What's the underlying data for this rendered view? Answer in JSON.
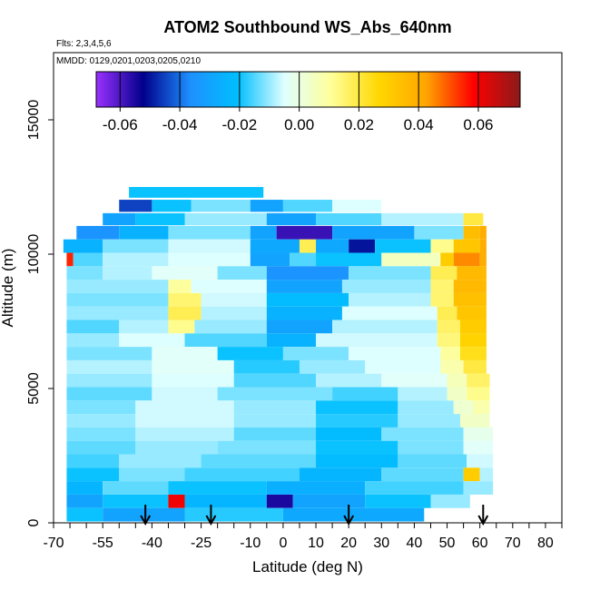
{
  "chart_data": {
    "type": "heatmap",
    "title": "ATOM2 Southbound WS_Abs_640nm",
    "flights_label": "Flts: 2,3,4,5,6",
    "dates_label": "MMDD: 0129,0201,0203,0205,0210",
    "xlabel": "Latitude (deg N)",
    "ylabel": "Altitude (m)",
    "xlim": [
      -70,
      85
    ],
    "ylim": [
      0,
      17500
    ],
    "x_ticks": [
      -70,
      -55,
      -40,
      -25,
      -10,
      0,
      10,
      20,
      30,
      40,
      50,
      60,
      70,
      80
    ],
    "x_tick_labels": [
      "-70",
      "-55",
      "-40",
      "-25",
      "-10",
      "0",
      "10",
      "20",
      "30",
      "40",
      "50",
      "60",
      "70",
      "80"
    ],
    "x_minor_ticks": [
      -65,
      -60,
      -50,
      -45,
      -35,
      -30,
      -20,
      -15,
      -5,
      5,
      15,
      25,
      35,
      45,
      55,
      65,
      75,
      85
    ],
    "y_ticks": [
      0,
      5000,
      10000,
      15000
    ],
    "y_tick_labels": [
      "0",
      "5000",
      "10000",
      "15000"
    ],
    "colorbar": {
      "range": [
        -0.068,
        0.074
      ],
      "ticks": [
        -0.06,
        -0.04,
        -0.02,
        0.0,
        0.02,
        0.04,
        0.06
      ],
      "tick_labels": [
        "-0.06",
        "-0.04",
        "-0.02",
        "0.00",
        "0.02",
        "0.04",
        "0.06"
      ],
      "colors": [
        "#9b30ff",
        "#00008b",
        "#1e90ff",
        "#00bfff",
        "#e0ffff",
        "#ffff99",
        "#ffd700",
        "#ffa500",
        "#ff0000",
        "#8b1a1a"
      ]
    },
    "arrows_latitude": [
      -42,
      -22,
      20,
      61
    ],
    "rows": [
      {
        "alt": 12300,
        "h": 400,
        "segs": [
          [
            -47,
            -6,
            -0.02
          ]
        ]
      },
      {
        "alt": 11800,
        "h": 450,
        "segs": [
          [
            -50,
            -40,
            -0.045
          ],
          [
            -40,
            -28,
            -0.02
          ],
          [
            -28,
            -10,
            -0.012
          ],
          [
            -10,
            0,
            -0.03
          ],
          [
            0,
            15,
            -0.015
          ],
          [
            15,
            30,
            -0.005
          ]
        ]
      },
      {
        "alt": 11300,
        "h": 450,
        "segs": [
          [
            -55,
            -45,
            -0.03
          ],
          [
            -45,
            -30,
            -0.02
          ],
          [
            -30,
            -5,
            -0.01
          ],
          [
            -5,
            10,
            -0.03
          ],
          [
            10,
            30,
            -0.015
          ],
          [
            30,
            55,
            -0.008
          ],
          [
            55,
            61,
            0.02
          ]
        ]
      },
      {
        "alt": 10800,
        "h": 500,
        "segs": [
          [
            -63,
            -50,
            -0.035
          ],
          [
            -50,
            -35,
            -0.025
          ],
          [
            -35,
            -10,
            -0.012
          ],
          [
            -10,
            -2,
            -0.03
          ],
          [
            -2,
            15,
            -0.058
          ],
          [
            15,
            40,
            -0.03
          ],
          [
            40,
            55,
            -0.012
          ],
          [
            55,
            60,
            0.035
          ],
          [
            60,
            62,
            0.04
          ]
        ]
      },
      {
        "alt": 10300,
        "h": 500,
        "segs": [
          [
            -67,
            -55,
            -0.025
          ],
          [
            -55,
            -35,
            -0.012
          ],
          [
            -35,
            -10,
            -0.006
          ],
          [
            -10,
            5,
            -0.028
          ],
          [
            5,
            10,
            0.018
          ],
          [
            10,
            20,
            -0.028
          ],
          [
            20,
            28,
            -0.05
          ],
          [
            28,
            45,
            -0.02
          ],
          [
            45,
            52,
            0.012
          ],
          [
            52,
            60,
            0.032
          ],
          [
            60,
            62,
            0.04
          ]
        ]
      },
      {
        "alt": 9800,
        "h": 500,
        "segs": [
          [
            -66,
            -64,
            0.055
          ],
          [
            -64,
            -55,
            -0.015
          ],
          [
            -55,
            -35,
            -0.008
          ],
          [
            -35,
            -10,
            -0.005
          ],
          [
            -10,
            2,
            -0.03
          ],
          [
            2,
            10,
            -0.015
          ],
          [
            10,
            30,
            -0.02
          ],
          [
            30,
            48,
            0.005
          ],
          [
            48,
            52,
            0.03
          ],
          [
            52,
            60,
            0.045
          ],
          [
            60,
            62,
            0.04
          ]
        ]
      },
      {
        "alt": 9300,
        "h": 500,
        "segs": [
          [
            -66,
            -55,
            -0.012
          ],
          [
            -55,
            -40,
            -0.008
          ],
          [
            -40,
            -20,
            -0.004
          ],
          [
            -20,
            -5,
            -0.012
          ],
          [
            -5,
            20,
            -0.035
          ],
          [
            20,
            45,
            -0.012
          ],
          [
            45,
            53,
            0.018
          ],
          [
            53,
            62,
            0.036
          ]
        ]
      },
      {
        "alt": 8800,
        "h": 500,
        "segs": [
          [
            -66,
            -35,
            -0.01
          ],
          [
            -35,
            -28,
            0.01
          ],
          [
            -28,
            -5,
            -0.005
          ],
          [
            -5,
            18,
            -0.03
          ],
          [
            18,
            45,
            -0.01
          ],
          [
            45,
            52,
            0.015
          ],
          [
            52,
            62,
            0.036
          ]
        ]
      },
      {
        "alt": 8300,
        "h": 500,
        "segs": [
          [
            -66,
            -35,
            -0.012
          ],
          [
            -35,
            -25,
            0.015
          ],
          [
            -25,
            -5,
            -0.006
          ],
          [
            -5,
            20,
            -0.022
          ],
          [
            20,
            45,
            -0.008
          ],
          [
            45,
            52,
            0.015
          ],
          [
            52,
            62,
            0.034
          ]
        ]
      },
      {
        "alt": 7800,
        "h": 500,
        "segs": [
          [
            -66,
            -35,
            -0.01
          ],
          [
            -35,
            -25,
            0.018
          ],
          [
            -25,
            -5,
            -0.008
          ],
          [
            -5,
            18,
            -0.025
          ],
          [
            18,
            47,
            -0.005
          ],
          [
            47,
            53,
            0.018
          ],
          [
            53,
            62,
            0.032
          ]
        ]
      },
      {
        "alt": 7300,
        "h": 500,
        "segs": [
          [
            -66,
            -50,
            -0.015
          ],
          [
            -50,
            -35,
            -0.008
          ],
          [
            -35,
            -27,
            0.012
          ],
          [
            -27,
            -5,
            -0.01
          ],
          [
            -5,
            15,
            -0.03
          ],
          [
            15,
            47,
            -0.008
          ],
          [
            47,
            54,
            0.016
          ],
          [
            54,
            62,
            0.03
          ]
        ]
      },
      {
        "alt": 6800,
        "h": 500,
        "segs": [
          [
            -66,
            -50,
            -0.01
          ],
          [
            -50,
            -30,
            -0.005
          ],
          [
            -30,
            -5,
            -0.015
          ],
          [
            -5,
            10,
            -0.025
          ],
          [
            10,
            47,
            -0.006
          ],
          [
            47,
            54,
            0.014
          ],
          [
            54,
            62,
            0.028
          ]
        ]
      },
      {
        "alt": 6300,
        "h": 500,
        "segs": [
          [
            -66,
            -40,
            -0.012
          ],
          [
            -40,
            -20,
            -0.004
          ],
          [
            -20,
            0,
            -0.02
          ],
          [
            0,
            20,
            -0.012
          ],
          [
            20,
            48,
            -0.005
          ],
          [
            48,
            54,
            0.01
          ],
          [
            54,
            62,
            0.024
          ]
        ]
      },
      {
        "alt": 5800,
        "h": 500,
        "segs": [
          [
            -66,
            -40,
            -0.008
          ],
          [
            -40,
            -15,
            -0.004
          ],
          [
            -15,
            5,
            -0.018
          ],
          [
            5,
            25,
            -0.01
          ],
          [
            25,
            48,
            -0.005
          ],
          [
            48,
            55,
            0.008
          ],
          [
            55,
            62,
            0.02
          ]
        ]
      },
      {
        "alt": 5300,
        "h": 500,
        "segs": [
          [
            -66,
            -40,
            -0.01
          ],
          [
            -40,
            -15,
            -0.005
          ],
          [
            -15,
            10,
            -0.015
          ],
          [
            10,
            30,
            -0.008
          ],
          [
            30,
            50,
            -0.004
          ],
          [
            50,
            56,
            0.006
          ],
          [
            56,
            63,
            0.016
          ]
        ]
      },
      {
        "alt": 4800,
        "h": 500,
        "segs": [
          [
            -66,
            -40,
            -0.014
          ],
          [
            -40,
            -20,
            -0.006
          ],
          [
            -20,
            15,
            -0.012
          ],
          [
            15,
            35,
            -0.016
          ],
          [
            35,
            50,
            -0.008
          ],
          [
            50,
            56,
            0.004
          ],
          [
            56,
            63,
            0.012
          ]
        ]
      },
      {
        "alt": 4300,
        "h": 500,
        "segs": [
          [
            -66,
            -45,
            -0.012
          ],
          [
            -45,
            -15,
            -0.006
          ],
          [
            -15,
            10,
            -0.01
          ],
          [
            10,
            35,
            -0.02
          ],
          [
            35,
            52,
            -0.01
          ],
          [
            52,
            58,
            0.002
          ],
          [
            58,
            63,
            0.008
          ]
        ]
      },
      {
        "alt": 3800,
        "h": 500,
        "segs": [
          [
            -66,
            -45,
            -0.01
          ],
          [
            -45,
            -15,
            -0.006
          ],
          [
            -15,
            10,
            -0.01
          ],
          [
            10,
            35,
            -0.018
          ],
          [
            35,
            54,
            -0.01
          ],
          [
            54,
            63,
            0.004
          ]
        ]
      },
      {
        "alt": 3300,
        "h": 500,
        "segs": [
          [
            -66,
            -45,
            -0.012
          ],
          [
            -45,
            -15,
            -0.008
          ],
          [
            -15,
            10,
            -0.014
          ],
          [
            10,
            30,
            -0.022
          ],
          [
            30,
            55,
            -0.012
          ],
          [
            55,
            64,
            -0.002
          ]
        ]
      },
      {
        "alt": 2800,
        "h": 500,
        "segs": [
          [
            -66,
            -45,
            -0.014
          ],
          [
            -45,
            -20,
            -0.01
          ],
          [
            -20,
            10,
            -0.012
          ],
          [
            10,
            35,
            -0.02
          ],
          [
            35,
            55,
            -0.012
          ],
          [
            55,
            64,
            -0.004
          ]
        ]
      },
      {
        "alt": 2300,
        "h": 500,
        "segs": [
          [
            -66,
            -50,
            -0.016
          ],
          [
            -50,
            -25,
            -0.01
          ],
          [
            -25,
            10,
            -0.014
          ],
          [
            10,
            35,
            -0.022
          ],
          [
            35,
            56,
            -0.014
          ],
          [
            56,
            64,
            -0.006
          ]
        ]
      },
      {
        "alt": 1800,
        "h": 500,
        "segs": [
          [
            -66,
            -50,
            -0.02
          ],
          [
            -50,
            -30,
            -0.012
          ],
          [
            -30,
            5,
            -0.016
          ],
          [
            5,
            30,
            -0.024
          ],
          [
            30,
            55,
            -0.014
          ],
          [
            55,
            60,
            0.03
          ],
          [
            60,
            64,
            -0.008
          ]
        ]
      },
      {
        "alt": 1300,
        "h": 500,
        "segs": [
          [
            -66,
            -55,
            -0.024
          ],
          [
            -55,
            -35,
            -0.014
          ],
          [
            -35,
            -5,
            -0.02
          ],
          [
            -5,
            25,
            -0.026
          ],
          [
            25,
            55,
            -0.016
          ],
          [
            55,
            64,
            -0.01
          ]
        ]
      },
      {
        "alt": 800,
        "h": 500,
        "segs": [
          [
            -66,
            -55,
            -0.03
          ],
          [
            -55,
            -35,
            -0.02
          ],
          [
            -35,
            -30,
            0.06
          ],
          [
            -30,
            -5,
            -0.024
          ],
          [
            -5,
            3,
            -0.055
          ],
          [
            3,
            25,
            -0.03
          ],
          [
            25,
            45,
            -0.02
          ],
          [
            45,
            57,
            -0.01
          ]
        ]
      },
      {
        "alt": 300,
        "h": 500,
        "segs": [
          [
            -66,
            -55,
            -0.02
          ],
          [
            -55,
            -30,
            -0.03
          ],
          [
            -30,
            0,
            -0.018
          ],
          [
            0,
            43,
            -0.028
          ]
        ]
      }
    ]
  }
}
